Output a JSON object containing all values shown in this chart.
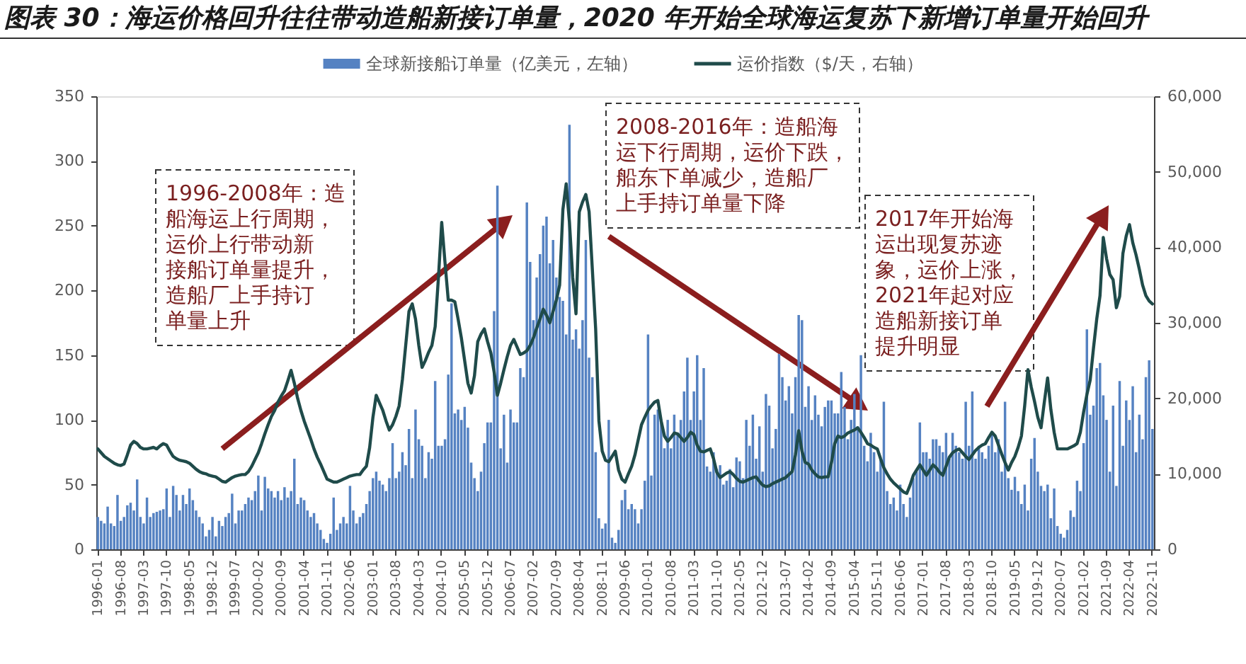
{
  "chart_data": {
    "type": "bar",
    "title": "图表 30：海运价格回升往往带动造船新接订单量，2020 年开始全球海运复苏下新增订单量开始回升",
    "categories": [
      "1996-01",
      null,
      null,
      null,
      null,
      null,
      null,
      "1996-08",
      null,
      null,
      null,
      null,
      null,
      null,
      "1997-03",
      null,
      null,
      null,
      null,
      null,
      null,
      "1997-10",
      null,
      null,
      null,
      null,
      null,
      null,
      "1998-05",
      null,
      null,
      null,
      null,
      null,
      null,
      "1998-12",
      null,
      null,
      null,
      null,
      null,
      null,
      "1999-07",
      null,
      null,
      null,
      null,
      null,
      null,
      "2000-02",
      null,
      null,
      null,
      null,
      null,
      null,
      "2000-09",
      null,
      null,
      null,
      null,
      null,
      null,
      "2001-04",
      null,
      null,
      null,
      null,
      null,
      null,
      "2001-11",
      null,
      null,
      null,
      null,
      null,
      null,
      "2002-06",
      null,
      null,
      null,
      null,
      null,
      null,
      "2003-01",
      null,
      null,
      null,
      null,
      null,
      null,
      "2003-08",
      null,
      null,
      null,
      null,
      null,
      null,
      "2004-03",
      null,
      null,
      null,
      null,
      null,
      null,
      "2004-10",
      null,
      null,
      null,
      null,
      null,
      null,
      "2005-05",
      null,
      null,
      null,
      null,
      null,
      null,
      "2005-12",
      null,
      null,
      null,
      null,
      null,
      null,
      "2006-07",
      null,
      null,
      null,
      null,
      null,
      null,
      "2007-02",
      null,
      null,
      null,
      null,
      null,
      null,
      "2007-09",
      null,
      null,
      null,
      null,
      null,
      null,
      "2008-04",
      null,
      null,
      null,
      null,
      null,
      null,
      "2008-11",
      null,
      null,
      null,
      null,
      null,
      null,
      "2009-06",
      null,
      null,
      null,
      null,
      null,
      null,
      "2010-01",
      null,
      null,
      null,
      null,
      null,
      null,
      "2010-08",
      null,
      null,
      null,
      null,
      null,
      null,
      "2011-03",
      null,
      null,
      null,
      null,
      null,
      null,
      "2011-10",
      null,
      null,
      null,
      null,
      null,
      null,
      "2012-05",
      null,
      null,
      null,
      null,
      null,
      null,
      "2012-12",
      null,
      null,
      null,
      null,
      null,
      null,
      "2013-07",
      null,
      null,
      null,
      null,
      null,
      null,
      "2014-02",
      null,
      null,
      null,
      null,
      null,
      null,
      "2014-09",
      null,
      null,
      null,
      null,
      null,
      null,
      "2015-04",
      null,
      null,
      null,
      null,
      null,
      null,
      "2015-11",
      null,
      null,
      null,
      null,
      null,
      null,
      "2016-06",
      null,
      null,
      null,
      null,
      null,
      null,
      "2017-01",
      null,
      null,
      null,
      null,
      null,
      null,
      "2017-08",
      null,
      null,
      null,
      null,
      null,
      null,
      "2018-03",
      null,
      null,
      null,
      null,
      null,
      null,
      "2018-10",
      null,
      null,
      null,
      null,
      null,
      null,
      "2019-05",
      null,
      null,
      null,
      null,
      null,
      null,
      "2019-12",
      null,
      null,
      null,
      null,
      null,
      null,
      "2020-07",
      null,
      null,
      null,
      null,
      null,
      null,
      "2021-02",
      null,
      null,
      null,
      null,
      null,
      null,
      "2021-09",
      null,
      null,
      null,
      null,
      null,
      null,
      "2022-04",
      null,
      null,
      null,
      null,
      null,
      null,
      "2022-11"
    ],
    "series": [
      {
        "name": "全球新接船订单量（亿美元，左轴）",
        "color": "#5582c2",
        "values": [
          25,
          22,
          20,
          33,
          20,
          18,
          42,
          22,
          25,
          34,
          36,
          30,
          54,
          25,
          20,
          40,
          25,
          28,
          29,
          30,
          31,
          47,
          25,
          49,
          42,
          30,
          42,
          35,
          47,
          38,
          30,
          25,
          20,
          10,
          15,
          25,
          10,
          22,
          18,
          25,
          28,
          43,
          20,
          30,
          30,
          35,
          40,
          38,
          45,
          57,
          30,
          56,
          47,
          45,
          40,
          45,
          38,
          48,
          40,
          45,
          70,
          35,
          40,
          38,
          30,
          25,
          28,
          20,
          15,
          8,
          5,
          12,
          40,
          15,
          20,
          25,
          20,
          49,
          30,
          20,
          25,
          28,
          35,
          45,
          55,
          60,
          53,
          50,
          45,
          55,
          82,
          55,
          60,
          75,
          65,
          93,
          55,
          108,
          85,
          80,
          55,
          75,
          70,
          130,
          80,
          80,
          85,
          135,
          190,
          105,
          108,
          100,
          110,
          94,
          67,
          55,
          45,
          60,
          82,
          98,
          98,
          184,
          281,
          78,
          104,
          67,
          108,
          98,
          98,
          140,
          133,
          268,
          222,
          177,
          210,
          228,
          250,
          257,
          221,
          239,
          210,
          195,
          192,
          166,
          328,
          162,
          170,
          155,
          177,
          239,
          148,
          133,
          75,
          24,
          16,
          20,
          100,
          9,
          5,
          15,
          38,
          46,
          31,
          35,
          31,
          20,
          31,
          53,
          166,
          57,
          104,
          108,
          100,
          78,
          100,
          78,
          104,
          90,
          100,
          122,
          148,
          100,
          122,
          150,
          100,
          140,
          64,
          60,
          75,
          62,
          65,
          50,
          53,
          62,
          48,
          71,
          68,
          55,
          100,
          80,
          104,
          70,
          95,
          60,
          120,
          111,
          78,
          93,
          151,
          133,
          115,
          126,
          105,
          133,
          181,
          177,
          110,
          126,
          100,
          119,
          104,
          95,
          110,
          115,
          115,
          105,
          105,
          137,
          110,
          85,
          100,
          120,
          95,
          150,
          80,
          68,
          90,
          75,
          60,
          70,
          114,
          45,
          35,
          40,
          30,
          50,
          35,
          25,
          40,
          55,
          60,
          98,
          75,
          75,
          70,
          85,
          85,
          80,
          75,
          90,
          70,
          90,
          80,
          75,
          70,
          114,
          80,
          122,
          70,
          80,
          75,
          70,
          80,
          90,
          75,
          85,
          60,
          114,
          55,
          46,
          56,
          45,
          35,
          50,
          30,
          70,
          86,
          60,
          49,
          45,
          50,
          24,
          47,
          18,
          12,
          9,
          15,
          30,
          25,
          53,
          45,
          82,
          170,
          104,
          111,
          140,
          144,
          119,
          100,
          60,
          111,
          49,
          130,
          80,
          115,
          100,
          126,
          75,
          104,
          85,
          133,
          146,
          93
        ]
      },
      {
        "name": "运价指数（$/天，右轴）",
        "type": "line",
        "axis": "y2",
        "color": "#1f4b4a",
        "values": [
          13300,
          12800,
          12300,
          12000,
          11700,
          11400,
          11200,
          11100,
          11300,
          12500,
          13800,
          14300,
          14000,
          13500,
          13300,
          13300,
          13400,
          13500,
          13300,
          13700,
          14000,
          13800,
          13000,
          12300,
          12000,
          11800,
          11700,
          11600,
          11400,
          11000,
          10600,
          10300,
          10100,
          10000,
          9800,
          9700,
          9600,
          9300,
          9000,
          8900,
          9200,
          9500,
          9700,
          9800,
          9900,
          9900,
          10300,
          11000,
          11900,
          12800,
          14000,
          15300,
          16500,
          17600,
          18400,
          19500,
          20300,
          21000,
          22300,
          23700,
          22000,
          20000,
          18400,
          17000,
          15800,
          14600,
          13300,
          12200,
          11300,
          10300,
          9300,
          9100,
          8900,
          8900,
          9100,
          9300,
          9500,
          9700,
          9800,
          9900,
          9900,
          10500,
          11000,
          13500,
          17500,
          20400,
          19400,
          18400,
          17000,
          15800,
          16500,
          17600,
          19000,
          22500,
          27000,
          31500,
          32500,
          30500,
          27000,
          24100,
          25000,
          26100,
          27000,
          29500,
          36000,
          43300,
          38000,
          33000,
          33000,
          32800,
          30500,
          28000,
          25000,
          22000,
          20700,
          23000,
          27500,
          28500,
          29200,
          27500,
          26000,
          23500,
          20400,
          22000,
          23800,
          25500,
          27000,
          27800,
          26800,
          25800,
          26000,
          26300,
          27000,
          28000,
          29300,
          30500,
          31800,
          31000,
          30000,
          31500,
          33000,
          35000,
          45000,
          48400,
          43300,
          36000,
          31200,
          44700,
          46000,
          47000,
          44700,
          37000,
          29200,
          17000,
          13000,
          11800,
          11600,
          12300,
          13000,
          10500,
          9300,
          8900,
          10000,
          11000,
          12500,
          14500,
          16500,
          17500,
          18400,
          19000,
          19500,
          19700,
          17000,
          15000,
          14300,
          14800,
          15400,
          15300,
          14800,
          14300,
          14800,
          15500,
          15200,
          13800,
          13000,
          12900,
          13100,
          13300,
          12000,
          10200,
          9500,
          9800,
          10100,
          10300,
          9900,
          9400,
          9000,
          8900,
          9100,
          9300,
          9500,
          9600,
          9000,
          8500,
          8300,
          8400,
          8700,
          8900,
          9100,
          9300,
          9500,
          9900,
          10300,
          12500,
          15700,
          13000,
          11500,
          11300,
          10500,
          10000,
          9600,
          9500,
          9600,
          9600,
          11500,
          14000,
          15000,
          14800,
          15000,
          15400,
          15600,
          15800,
          16100,
          15500,
          14800,
          14000,
          13800,
          13500,
          13300,
          12000,
          10800,
          10000,
          9300,
          8800,
          8400,
          8000,
          7600,
          7400,
          8500,
          9800,
          10500,
          11200,
          10500,
          9800,
          10500,
          11200,
          10800,
          10200,
          9800,
          11000,
          12200,
          12800,
          13100,
          13300,
          12800,
          12300,
          11900,
          12500,
          13100,
          13500,
          13800,
          14000,
          14800,
          15500,
          15000,
          13800,
          12600,
          11500,
          10500,
          11500,
          12300,
          13500,
          15000,
          19000,
          23800,
          21500,
          19600,
          17500,
          16100,
          19500,
          22700,
          18500,
          15500,
          13300,
          13300,
          13300,
          13300,
          13500,
          13700,
          14000,
          15500,
          18200,
          20500,
          22400,
          26600,
          30500,
          33600,
          41300,
          38500,
          36400,
          35700,
          32000,
          33500,
          39200,
          41500,
          43000,
          40600,
          39000,
          37100,
          35000,
          33600,
          32900,
          32500
        ]
      }
    ],
    "ylim": [
      0,
      350
    ],
    "yticks": [
      0,
      50,
      100,
      150,
      200,
      250,
      300,
      350
    ],
    "y2lim": [
      0,
      60000
    ],
    "y2ticks": [
      0,
      {
        "value": 10000,
        "label": "10,000"
      },
      {
        "value": 20000,
        "label": "20,000"
      },
      {
        "value": 30000,
        "label": "30,000"
      },
      {
        "value": 40000,
        "label": "40,000"
      },
      {
        "value": 50000,
        "label": "50,000"
      },
      {
        "value": 60000,
        "label": "60,000"
      }
    ],
    "legend": "top",
    "annotations": [
      "1996-2008年：造船海运上行周期，运价上行带动新接船订单量提升，造船厂上手持订单量上升",
      "2008-2016年：造船海运下行周期，运价下跌，船东下单减少，造船厂上手持订单量下降",
      "2017年开始海运出现复苏迹象，运价上涨，2021年起对应造船新接订单提升明显"
    ]
  }
}
